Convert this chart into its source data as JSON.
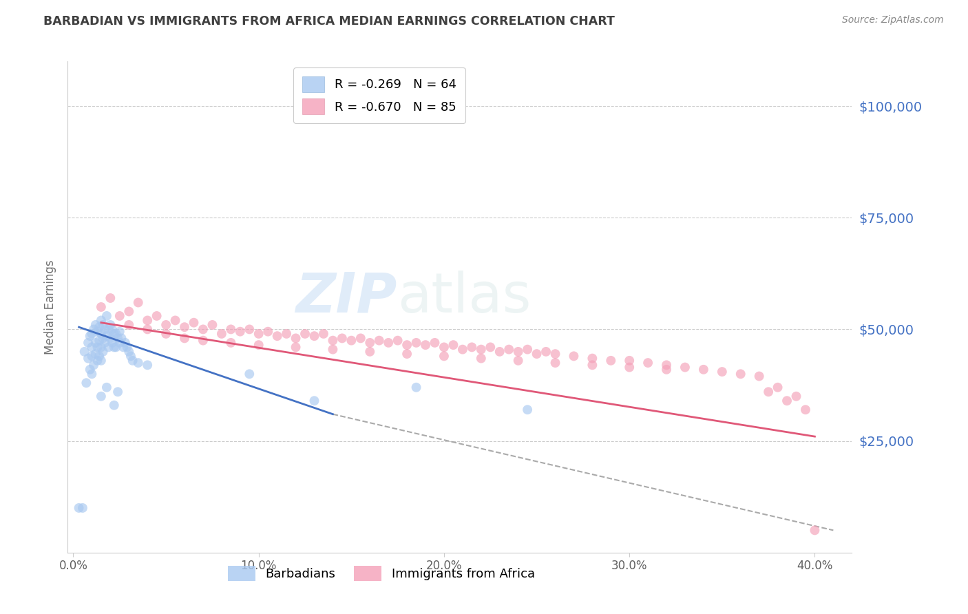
{
  "title": "BARBADIAN VS IMMIGRANTS FROM AFRICA MEDIAN EARNINGS CORRELATION CHART",
  "source": "Source: ZipAtlas.com",
  "ylabel": "Median Earnings",
  "watermark": "ZIPatlas",
  "blue_color": "#a8c8f0",
  "pink_color": "#f4a0b8",
  "blue_line_color": "#4472c4",
  "pink_line_color": "#e05878",
  "dash_color": "#aaaaaa",
  "title_color": "#404040",
  "source_color": "#888888",
  "ytick_color": "#4472c4",
  "xtick_color": "#606060",
  "grid_color": "#cccccc",
  "ylim_low": 0,
  "ylim_high": 110000,
  "xlim_low": -0.3,
  "xlim_high": 42,
  "y_ticks": [
    25000,
    50000,
    75000,
    100000
  ],
  "y_tick_labels": [
    "$25,000",
    "$50,000",
    "$75,000",
    "$100,000"
  ],
  "x_ticks": [
    0,
    10,
    20,
    30,
    40
  ],
  "x_tick_labels": [
    "0.0%",
    "10.0%",
    "20.0%",
    "30.0%",
    "40.0%"
  ],
  "barbadians_label": "Barbadians",
  "africa_label": "Immigrants from Africa",
  "legend_line1": "R = -0.269   N = 64",
  "legend_line2": "R = -0.670   N = 85",
  "barb_x": [
    0.3,
    0.5,
    0.6,
    0.7,
    0.8,
    0.8,
    0.9,
    0.9,
    1.0,
    1.0,
    1.0,
    1.0,
    1.1,
    1.1,
    1.2,
    1.2,
    1.2,
    1.3,
    1.3,
    1.3,
    1.4,
    1.4,
    1.4,
    1.5,
    1.5,
    1.5,
    1.5,
    1.6,
    1.6,
    1.6,
    1.7,
    1.7,
    1.8,
    1.8,
    1.9,
    1.9,
    2.0,
    2.0,
    2.1,
    2.1,
    2.2,
    2.2,
    2.3,
    2.3,
    2.4,
    2.5,
    2.5,
    2.6,
    2.7,
    2.8,
    2.9,
    3.0,
    3.1,
    3.2,
    3.5,
    4.0,
    2.4,
    2.2,
    1.8,
    1.5,
    9.5,
    13.0,
    24.5,
    18.5
  ],
  "barb_y": [
    10000,
    10000,
    45000,
    38000,
    47000,
    43500,
    48500,
    41000,
    49000,
    46000,
    44000,
    40000,
    50000,
    42000,
    51000,
    47000,
    44500,
    49500,
    46000,
    43000,
    50500,
    47500,
    44000,
    52000,
    49000,
    46000,
    43000,
    51000,
    48000,
    45000,
    50000,
    47000,
    53000,
    48500,
    50000,
    46000,
    51000,
    48000,
    50000,
    47000,
    49000,
    46000,
    49000,
    46000,
    48000,
    49500,
    47000,
    48000,
    46000,
    47000,
    46000,
    45000,
    44000,
    43000,
    42500,
    42000,
    36000,
    33000,
    37000,
    35000,
    40000,
    34000,
    32000,
    37000
  ],
  "africa_x": [
    1.5,
    2.0,
    2.5,
    3.0,
    3.5,
    4.0,
    4.5,
    5.0,
    5.5,
    6.0,
    6.5,
    7.0,
    7.5,
    8.0,
    8.5,
    9.0,
    9.5,
    10.0,
    10.5,
    11.0,
    11.5,
    12.0,
    12.5,
    13.0,
    13.5,
    14.0,
    14.5,
    15.0,
    15.5,
    16.0,
    16.5,
    17.0,
    17.5,
    18.0,
    18.5,
    19.0,
    19.5,
    20.0,
    20.5,
    21.0,
    21.5,
    22.0,
    22.5,
    23.0,
    23.5,
    24.0,
    24.5,
    25.0,
    25.5,
    26.0,
    27.0,
    28.0,
    29.0,
    30.0,
    31.0,
    32.0,
    33.0,
    34.0,
    35.0,
    36.0,
    37.0,
    37.5,
    38.0,
    38.5,
    39.0,
    39.5,
    40.0,
    3.0,
    4.0,
    5.0,
    6.0,
    7.0,
    8.5,
    10.0,
    12.0,
    14.0,
    16.0,
    18.0,
    20.0,
    22.0,
    24.0,
    26.0,
    28.0,
    30.0,
    32.0
  ],
  "africa_y": [
    55000,
    57000,
    53000,
    54000,
    56000,
    52000,
    53000,
    51000,
    52000,
    50500,
    51500,
    50000,
    51000,
    49000,
    50000,
    49500,
    50000,
    49000,
    49500,
    48500,
    49000,
    48000,
    49000,
    48500,
    49000,
    47500,
    48000,
    47500,
    48000,
    47000,
    47500,
    47000,
    47500,
    46500,
    47000,
    46500,
    47000,
    46000,
    46500,
    45500,
    46000,
    45500,
    46000,
    45000,
    45500,
    45000,
    45500,
    44500,
    45000,
    44500,
    44000,
    43500,
    43000,
    43000,
    42500,
    42000,
    41500,
    41000,
    40500,
    40000,
    39500,
    36000,
    37000,
    34000,
    35000,
    32000,
    5000,
    51000,
    50000,
    49000,
    48000,
    47500,
    47000,
    46500,
    46000,
    45500,
    45000,
    44500,
    44000,
    43500,
    43000,
    42500,
    42000,
    41500,
    41000
  ],
  "blue_reg_x0": 0.3,
  "blue_reg_x1": 14.0,
  "blue_reg_y0": 50500,
  "blue_reg_y1": 31000,
  "pink_reg_x0": 1.5,
  "pink_reg_x1": 40.0,
  "pink_reg_y0": 51500,
  "pink_reg_y1": 26000,
  "dash_x0": 14.0,
  "dash_x1": 41.0,
  "dash_y0": 31000,
  "dash_y1": 5000
}
